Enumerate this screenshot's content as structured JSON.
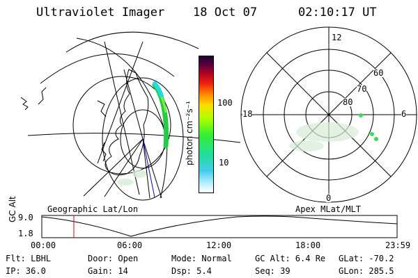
{
  "header": {
    "instrument": "Ultraviolet Imager",
    "date": "18 Oct 07",
    "time": "02:10:17 UT"
  },
  "geo_panel": {
    "label": "Geographic Lat/Lon"
  },
  "polar_panel": {
    "label": "Apex MLat/MLT",
    "mlt_labels": {
      "top": "12",
      "left": "18",
      "right": "6",
      "bottom": "0"
    },
    "lat_labels": [
      "60",
      "70",
      "80"
    ]
  },
  "colorbar": {
    "unit_label": "photon cm⁻²s⁻¹",
    "ticks": [
      "100",
      "10"
    ]
  },
  "altitude_plot": {
    "ylabel": "GC Alt",
    "ymax_label": "9.0",
    "ymin_label": "1.8",
    "x_ticks": [
      "00:00",
      "06:00",
      "12:00",
      "18:00",
      "23:59"
    ]
  },
  "info": {
    "flt": "Flt: LBHL",
    "ip": "IP: 36.0",
    "door": "Door: Open",
    "gain": "Gain: 14",
    "mode": "Mode: Normal",
    "dsp": "Dsp:    5.4",
    "gcalt": "GC Alt: 6.4 Re",
    "seq": "Seq: 39",
    "glat": "GLat: -70.2",
    "glon": "GLon: 285.5"
  },
  "colors": {
    "aurora_green": "#22cc44",
    "aurora_cyan": "#22dddd",
    "haze": "#d8ecd8",
    "marker_red": "#dd0000",
    "track_blue": "#0000cc"
  }
}
